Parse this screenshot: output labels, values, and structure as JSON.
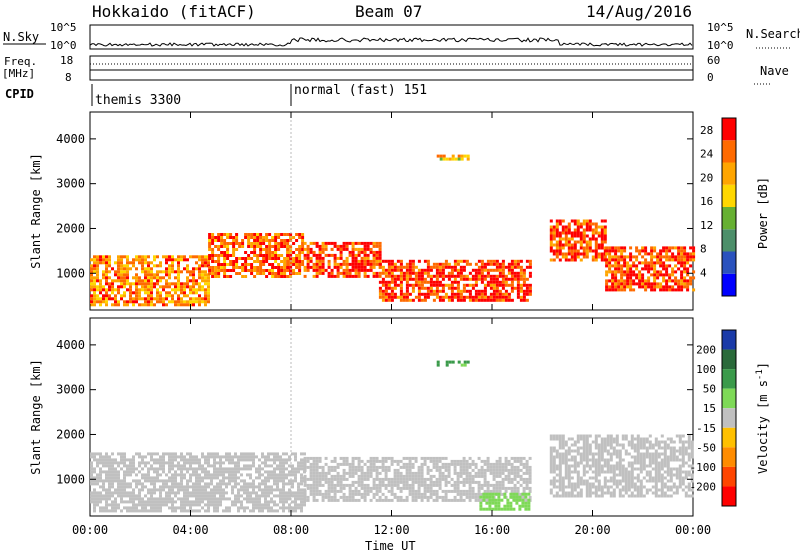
{
  "header": {
    "station": "Hokkaido (fitACF)",
    "beam": "Beam 07",
    "date": "14/Aug/2016"
  },
  "panels": {
    "nsky": {
      "left_label": "N.Sky",
      "right_label": "N.Search",
      "left_ticks": [
        "10^5",
        "10^0"
      ],
      "right_ticks": [
        "10^5",
        "10^0"
      ]
    },
    "freq": {
      "left_label_1": "Freq.",
      "left_label_2": "[MHz]",
      "right_label": "Nave",
      "left_ticks": [
        "18",
        "8"
      ],
      "right_ticks": [
        "60",
        "0"
      ]
    },
    "cpid": {
      "label": "CPID",
      "segments": [
        {
          "name": "themis 3300",
          "start": "00:00"
        },
        {
          "name": "normal (fast) 151",
          "start": "08:00"
        }
      ]
    }
  },
  "chart_data": [
    {
      "type": "heatmap",
      "panel": "power",
      "title": "",
      "xlabel": "",
      "ylabel": "Slant Range [km]",
      "x_ticks": [
        "00:00",
        "04:00",
        "08:00",
        "12:00",
        "16:00",
        "20:00",
        "00:00"
      ],
      "x_range_hours": [
        0,
        24
      ],
      "y_ticks": [
        1000,
        2000,
        3000,
        4000
      ],
      "ylim": [
        180,
        4600
      ],
      "colorbar": {
        "label": "Power [dB]",
        "ticks": [
          4,
          8,
          12,
          16,
          20,
          24,
          28
        ],
        "range": [
          0,
          30
        ],
        "colors": [
          "#0000ff",
          "#2a52be",
          "#4c8f6a",
          "#66b032",
          "#ffd700",
          "#ffa500",
          "#ff6a00",
          "#ff0000"
        ]
      },
      "echo_regions_hours_km": [
        {
          "x": [
            0,
            4.7
          ],
          "y": [
            300,
            1400
          ],
          "level": 22
        },
        {
          "x": [
            4.7,
            8.5
          ],
          "y": [
            900,
            1900
          ],
          "level": 24
        },
        {
          "x": [
            8.5,
            11.5
          ],
          "y": [
            900,
            1700
          ],
          "level": 26
        },
        {
          "x": [
            11.5,
            17.5
          ],
          "y": [
            400,
            1300
          ],
          "level": 27
        },
        {
          "x": [
            18.3,
            20.5
          ],
          "y": [
            1300,
            2200
          ],
          "level": 26
        },
        {
          "x": [
            20.5,
            24
          ],
          "y": [
            600,
            1600
          ],
          "level": 26
        },
        {
          "x": [
            13.8,
            15.0
          ],
          "y": [
            3550,
            3650
          ],
          "level": 20
        }
      ]
    },
    {
      "type": "heatmap",
      "panel": "velocity",
      "title": "",
      "xlabel": "Time UT",
      "ylabel": "Slant Range [km]",
      "x_ticks": [
        "00:00",
        "04:00",
        "08:00",
        "12:00",
        "16:00",
        "20:00",
        "00:00"
      ],
      "x_range_hours": [
        0,
        24
      ],
      "y_ticks": [
        1000,
        2000,
        3000,
        4000
      ],
      "ylim": [
        180,
        4600
      ],
      "colorbar": {
        "label": "Velocity [m s^-1]",
        "ticks": [
          200,
          100,
          50,
          15,
          -15,
          -50,
          -100,
          -200
        ],
        "colors": [
          "#1a3aa8",
          "#2a6a3a",
          "#3a9a4a",
          "#7ed957",
          "#c0c0c0",
          "#ffc000",
          "#ff8c00",
          "#ff4500",
          "#ff0000"
        ]
      },
      "echo_regions_hours_km": [
        {
          "x": [
            0,
            8.5
          ],
          "y": [
            300,
            1600
          ],
          "velocity": 0
        },
        {
          "x": [
            8.5,
            17.5
          ],
          "y": [
            500,
            1500
          ],
          "velocity": 0
        },
        {
          "x": [
            15.5,
            17.5
          ],
          "y": [
            300,
            700
          ],
          "velocity": 30
        },
        {
          "x": [
            18.3,
            24
          ],
          "y": [
            600,
            2000
          ],
          "velocity": 0
        },
        {
          "x": [
            13.8,
            15.0
          ],
          "y": [
            3550,
            3650
          ],
          "velocity": 60
        }
      ]
    }
  ]
}
